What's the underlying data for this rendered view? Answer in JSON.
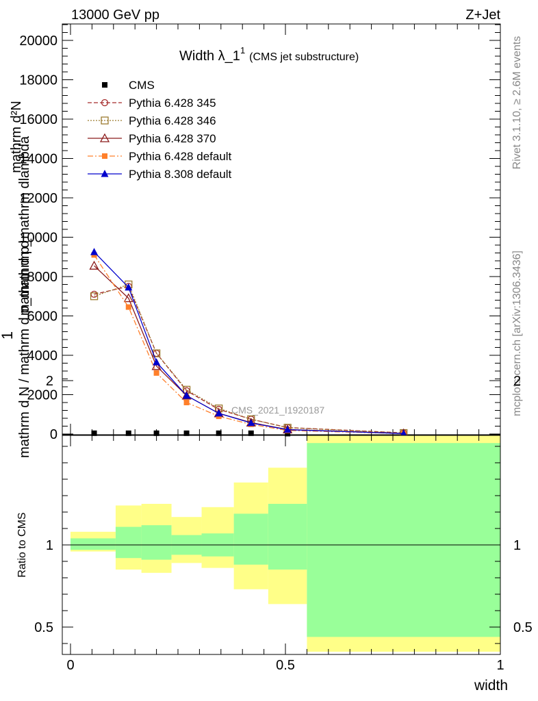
{
  "header": {
    "left": "13000 GeV pp",
    "right": "Z+Jet"
  },
  "title": {
    "main": "Width λ_1",
    "sup": "1",
    "sub": "(CMS jet substructure)"
  },
  "side_labels": {
    "rivet": "Rivet 3.1.10, ≥ 2.6M events",
    "mcplots": "mcplots.cern.ch [arXiv:1306.3436]"
  },
  "watermark": "CMS_2021_I1920187",
  "ylabel_main": {
    "line1_num": "mathrm d²N",
    "line1_den": "mathrm d p_mathrm dlambda",
    "one": "1",
    "den": "mathrm d N / mathrm d p_mathrm d"
  },
  "ylabel_ratio": "Ratio to CMS",
  "xlabel": "width",
  "chart_data": [
    {
      "type": "line",
      "panel": "main",
      "xlim": [
        0,
        1
      ],
      "ylim": [
        0,
        21000
      ],
      "y_ticks": [
        0,
        2000,
        4000,
        6000,
        8000,
        10000,
        12000,
        14000,
        16000,
        18000,
        20000
      ],
      "y_tick_labels": [
        "0",
        "2000",
        "4000",
        "6000",
        "8000",
        "10000",
        "12000",
        "14000",
        "16000",
        "18000",
        "20000"
      ],
      "series": [
        {
          "name": "CMS",
          "color": "#000000",
          "marker": "square-filled",
          "dash": "none",
          "x": [
            0.055,
            0.135,
            0.2,
            0.27,
            0.345,
            0.42,
            0.505,
            0.775
          ],
          "y": [
            40,
            40,
            40,
            40,
            40,
            40,
            20,
            5
          ]
        },
        {
          "name": "Pythia 6.428 345",
          "color": "#a52a2a",
          "marker": "circle-open",
          "dash": "6,3",
          "x": [
            0.055,
            0.135,
            0.2,
            0.27,
            0.345,
            0.42,
            0.505,
            0.775
          ],
          "y": [
            7100,
            7500,
            4100,
            2200,
            1250,
            750,
            330,
            60
          ]
        },
        {
          "name": "Pythia 6.428 346",
          "color": "#9c7a2e",
          "marker": "square-open",
          "dash": "2,2",
          "x": [
            0.055,
            0.135,
            0.2,
            0.27,
            0.345,
            0.42,
            0.505,
            0.775
          ],
          "y": [
            7000,
            7600,
            4100,
            2250,
            1300,
            750,
            320,
            50
          ]
        },
        {
          "name": "Pythia 6.428 370",
          "color": "#8b1a1a",
          "marker": "triangle-open",
          "dash": "none",
          "x": [
            0.055,
            0.135,
            0.2,
            0.27,
            0.345,
            0.42,
            0.505,
            0.775
          ],
          "y": [
            8550,
            6900,
            3450,
            1950,
            1050,
            580,
            230,
            30
          ]
        },
        {
          "name": "Pythia 6.428 default",
          "color": "#ff7f2a",
          "marker": "square-filled",
          "dash": "8,3,2,3",
          "x": [
            0.055,
            0.135,
            0.2,
            0.27,
            0.345,
            0.42,
            0.505,
            0.775
          ],
          "y": [
            9100,
            6450,
            3100,
            1600,
            900,
            490,
            180,
            20
          ]
        },
        {
          "name": "Pythia 8.308 default",
          "color": "#0000cc",
          "marker": "triangle-filled",
          "dash": "none",
          "x": [
            0.055,
            0.135,
            0.2,
            0.27,
            0.345,
            0.42,
            0.505,
            0.775
          ],
          "y": [
            9250,
            7450,
            3650,
            1950,
            1050,
            560,
            220,
            25
          ]
        }
      ],
      "legend_position": "top-left"
    },
    {
      "type": "area",
      "panel": "ratio",
      "xlim": [
        0,
        1
      ],
      "ylim": [
        0.35,
        2.25
      ],
      "y_ticks": [
        0.5,
        1,
        2
      ],
      "y_tick_labels": [
        "0.5",
        "1",
        "2"
      ],
      "x_ticks": [
        0,
        0.5,
        1
      ],
      "x_tick_labels": [
        "0",
        "0.5",
        "1"
      ],
      "colors": {
        "inner": "#99ff99",
        "outer": "#ffff88"
      },
      "bins": [
        {
          "x0": 0.0,
          "x1": 0.105,
          "in_lo": 0.97,
          "in_hi": 1.04,
          "out_lo": 0.96,
          "out_hi": 1.08
        },
        {
          "x0": 0.105,
          "x1": 0.165,
          "in_lo": 0.92,
          "in_hi": 1.11,
          "out_lo": 0.85,
          "out_hi": 1.24
        },
        {
          "x0": 0.165,
          "x1": 0.235,
          "in_lo": 0.91,
          "in_hi": 1.12,
          "out_lo": 0.83,
          "out_hi": 1.25
        },
        {
          "x0": 0.235,
          "x1": 0.305,
          "in_lo": 0.94,
          "in_hi": 1.06,
          "out_lo": 0.89,
          "out_hi": 1.17
        },
        {
          "x0": 0.305,
          "x1": 0.38,
          "in_lo": 0.93,
          "in_hi": 1.07,
          "out_lo": 0.86,
          "out_hi": 1.23
        },
        {
          "x0": 0.38,
          "x1": 0.46,
          "in_lo": 0.88,
          "in_hi": 1.19,
          "out_lo": 0.73,
          "out_hi": 1.38
        },
        {
          "x0": 0.46,
          "x1": 0.55,
          "in_lo": 0.85,
          "in_hi": 1.25,
          "out_lo": 0.64,
          "out_hi": 1.47
        },
        {
          "x0": 0.55,
          "x1": 1.0,
          "in_lo": 0.44,
          "in_hi": 1.62,
          "out_lo": 0.35,
          "out_hi": 2.05
        }
      ],
      "reference_line": 1
    }
  ]
}
